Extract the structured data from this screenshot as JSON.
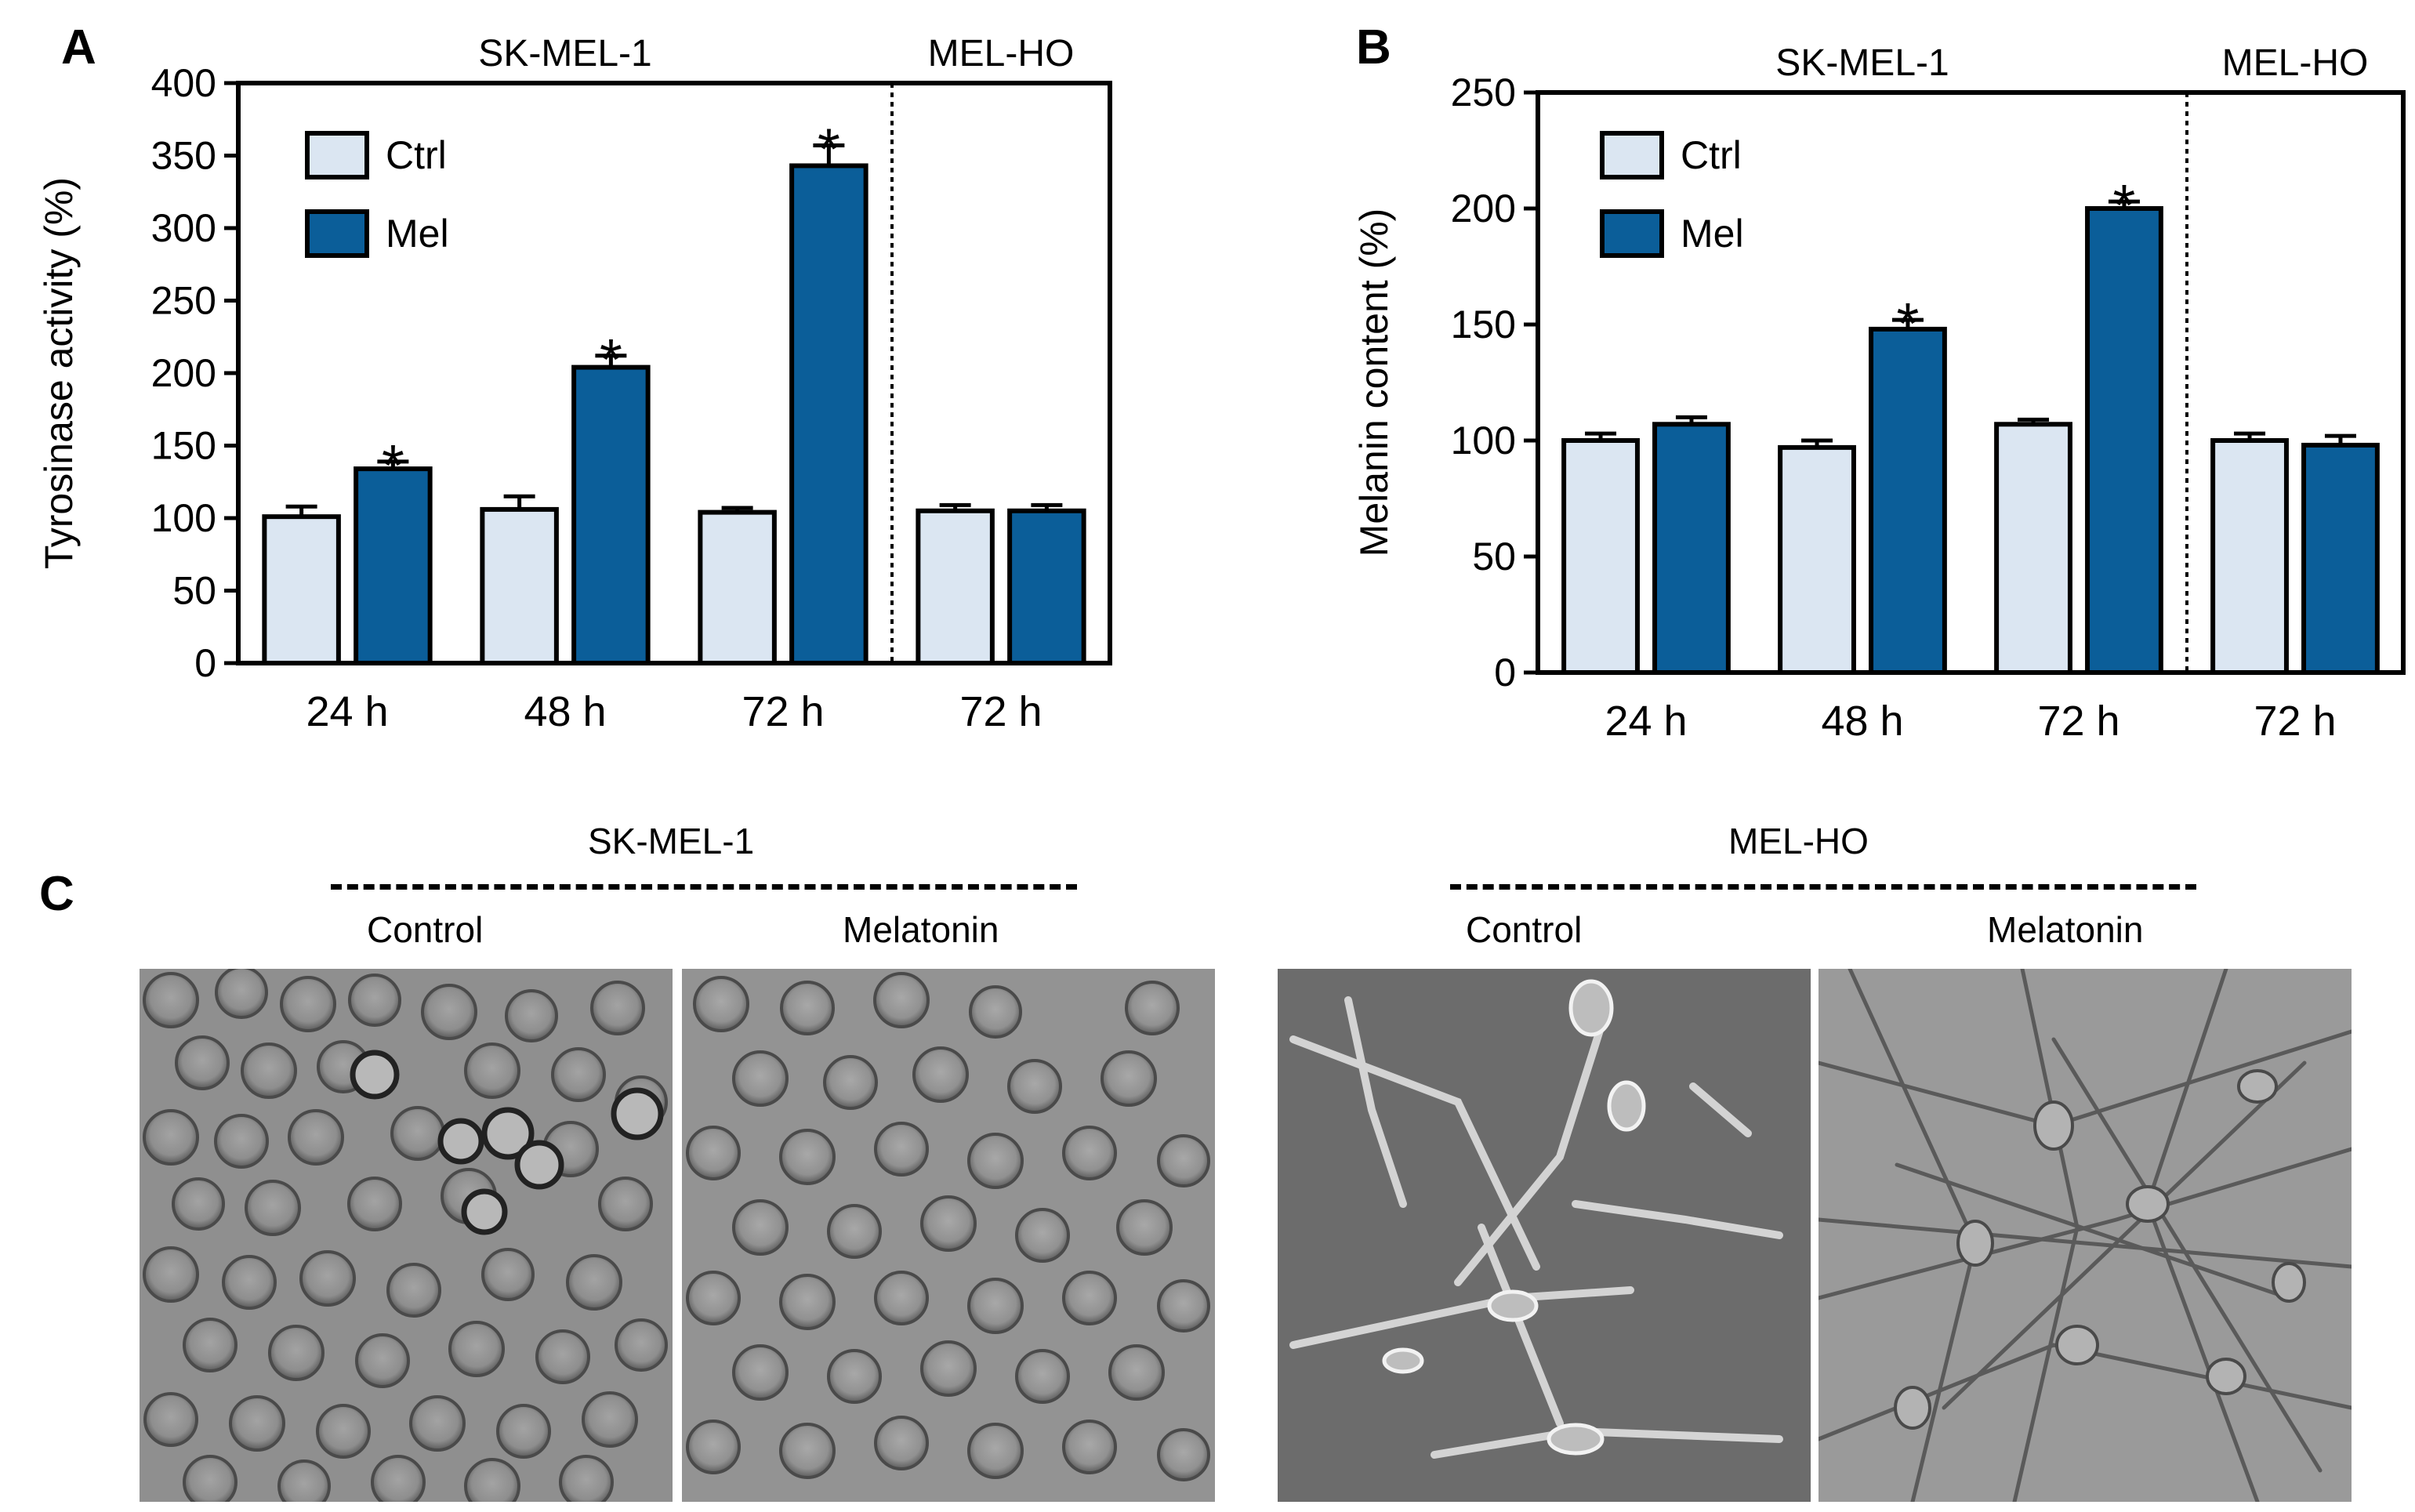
{
  "chart_data": [
    {
      "panel": "A",
      "type": "bar",
      "ylabel": "Tyrosinase activity (%)",
      "ylim": [
        0,
        400
      ],
      "yticks": [
        0,
        50,
        100,
        150,
        200,
        250,
        300,
        350,
        400
      ],
      "groups": [
        "SK-MEL-1",
        "MEL-HO"
      ],
      "categories": [
        "24 h",
        "48 h",
        "72 h",
        "72 h"
      ],
      "category_groups": [
        0,
        0,
        0,
        1
      ],
      "series": [
        {
          "name": "Ctrl",
          "values": [
            101,
            106,
            104,
            105
          ],
          "errors": [
            7,
            9,
            3,
            4
          ],
          "color": "#dbe6f2"
        },
        {
          "name": "Mel",
          "values": [
            134,
            204,
            343,
            105
          ],
          "errors": [
            5,
            8,
            14,
            4
          ],
          "color": "#0b5e99"
        }
      ],
      "significance": [
        [
          false,
          false,
          false,
          false
        ],
        [
          true,
          true,
          true,
          false
        ]
      ],
      "significance_marker": "*",
      "legend": "top-left",
      "grid": false
    },
    {
      "panel": "B",
      "type": "bar",
      "ylabel": "Melanin content (%)",
      "ylim": [
        0,
        250
      ],
      "yticks": [
        0,
        50,
        100,
        150,
        200,
        250
      ],
      "groups": [
        "SK-MEL-1",
        "MEL-HO"
      ],
      "categories": [
        "24 h",
        "48 h",
        "72 h",
        "72 h"
      ],
      "category_groups": [
        0,
        0,
        0,
        1
      ],
      "series": [
        {
          "name": "Ctrl",
          "values": [
            100,
            97,
            107,
            100
          ],
          "errors": [
            3,
            3,
            2,
            3
          ],
          "color": "#dbe6f2"
        },
        {
          "name": "Mel",
          "values": [
            107,
            148,
            200,
            98
          ],
          "errors": [
            3,
            4,
            3,
            4
          ],
          "color": "#0b5e99"
        }
      ],
      "significance": [
        [
          false,
          false,
          false,
          false
        ],
        [
          false,
          true,
          true,
          false
        ]
      ],
      "significance_marker": "*",
      "legend": "top-left",
      "grid": false
    }
  ],
  "panel_c": {
    "letter": "C",
    "groups": [
      {
        "name": "SK-MEL-1",
        "conditions": [
          "Control",
          "Melatonin"
        ]
      },
      {
        "name": "MEL-HO",
        "conditions": [
          "Control",
          "Melatonin"
        ]
      }
    ]
  }
}
